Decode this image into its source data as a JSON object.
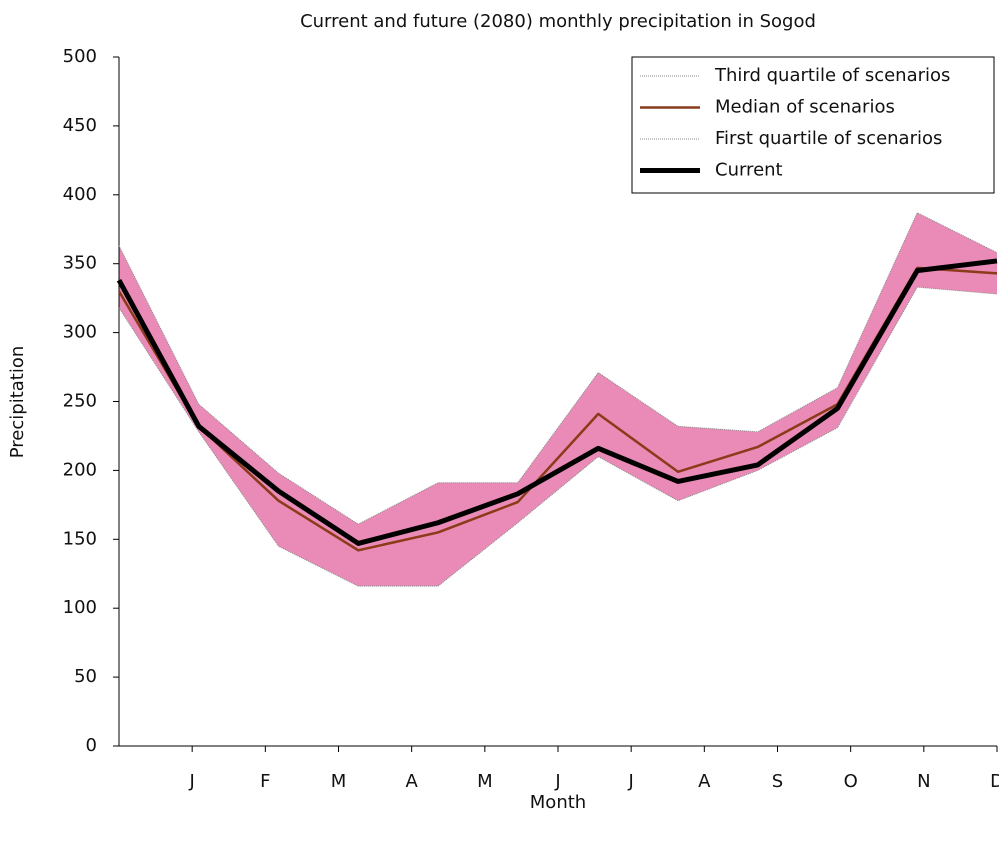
{
  "chart_data": {
    "type": "line",
    "title": "Current and future (2080) monthly precipitation in Sogod",
    "x_label": "Month",
    "y_label": "Precipitation",
    "xlim": [
      0,
      12
    ],
    "xticks": [
      {
        "value": 1,
        "label": "J"
      },
      {
        "value": 2,
        "label": "F"
      },
      {
        "value": 3,
        "label": "M"
      },
      {
        "value": 4,
        "label": "A"
      },
      {
        "value": 5,
        "label": "M"
      },
      {
        "value": 6,
        "label": "J"
      },
      {
        "value": 7,
        "label": "J"
      },
      {
        "value": 8,
        "label": "A"
      },
      {
        "value": 9,
        "label": "S"
      },
      {
        "value": 10,
        "label": "O"
      },
      {
        "value": 11,
        "label": "N"
      },
      {
        "value": 12,
        "label": "D"
      }
    ],
    "x": [
      0,
      1.09,
      2.18,
      3.27,
      4.36,
      5.45,
      6.55,
      7.64,
      8.73,
      9.82,
      10.91,
      12
    ],
    "ylim": [
      0,
      500
    ],
    "yticks": [
      0,
      50,
      100,
      150,
      200,
      250,
      300,
      350,
      400,
      450,
      500
    ],
    "band_color": "#e98bb6",
    "legend": "upper right",
    "series": [
      {
        "name": "Third quartile of scenarios",
        "color": "#888888",
        "values": [
          363,
          248,
          198,
          161,
          191,
          191,
          271,
          232,
          228,
          260,
          387,
          358
        ]
      },
      {
        "name": "Median of scenarios",
        "color": "#8b3a1a",
        "values": [
          330,
          232,
          178,
          142,
          155,
          177,
          241,
          199,
          217,
          248,
          347,
          343
        ]
      },
      {
        "name": "First quartile of scenarios",
        "color": "#888888",
        "values": [
          318,
          228,
          145,
          116,
          116,
          162,
          210,
          178,
          200,
          231,
          333,
          328
        ]
      },
      {
        "name": "Current",
        "color": "#000000",
        "values": [
          338,
          232,
          185,
          147,
          162,
          183,
          216,
          192,
          204,
          245,
          345,
          352
        ]
      }
    ]
  }
}
